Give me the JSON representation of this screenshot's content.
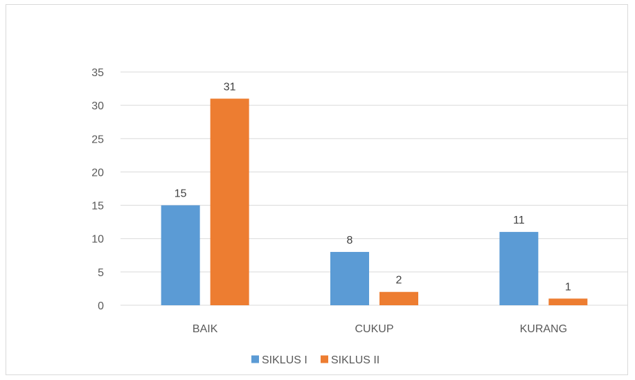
{
  "chart_data": {
    "type": "bar",
    "categories": [
      "BAIK",
      "CUKUP",
      "KURANG"
    ],
    "series": [
      {
        "name": "SIKLUS I",
        "values": [
          15,
          8,
          11
        ],
        "color": "#5b9bd5"
      },
      {
        "name": "SIKLUS II",
        "values": [
          31,
          2,
          1
        ],
        "color": "#ed7d31"
      }
    ],
    "title": "",
    "xlabel": "",
    "ylabel": "",
    "ylim": [
      0,
      35
    ],
    "yticks": [
      0,
      5,
      10,
      15,
      20,
      25,
      30,
      35
    ],
    "grid": true,
    "legend": "bottom",
    "gridline_color": "#d9d9d9"
  }
}
